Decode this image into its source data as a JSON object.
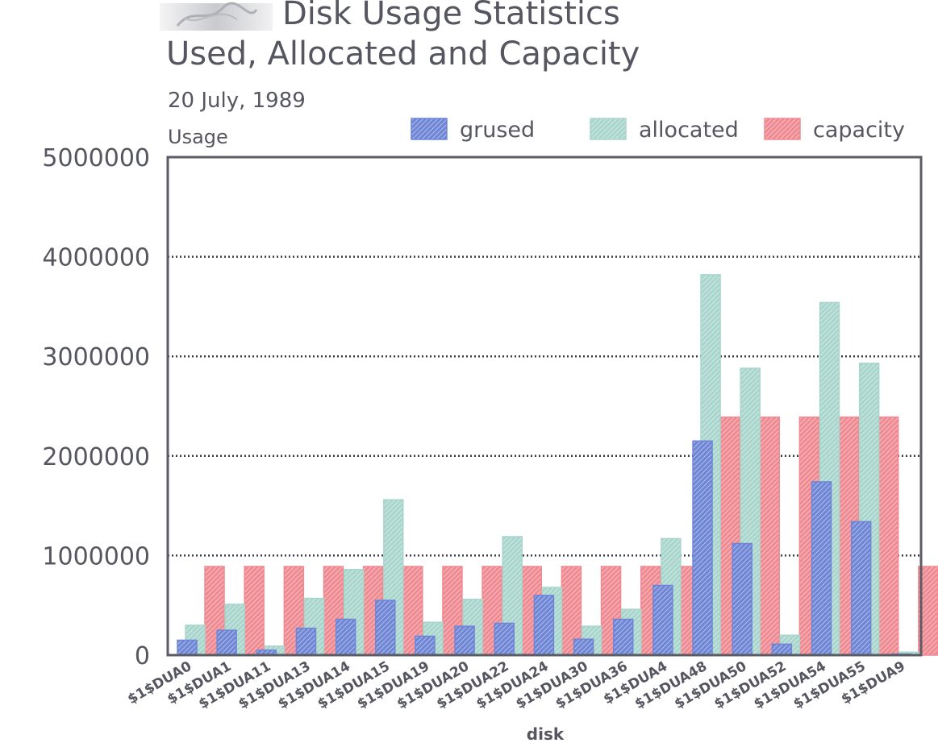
{
  "header": {
    "title": "Disk Usage Statistics",
    "subtitle": "Used, Allocated and Capacity",
    "date": "20 July, 1989"
  },
  "chart_data": {
    "type": "bar",
    "title": "Disk Usage Statistics",
    "subtitle": "Used, Allocated and Capacity",
    "xlabel": "disk",
    "ylabel": "Usage",
    "ylim": [
      0,
      5000000
    ],
    "yticks": [
      0,
      1000000,
      2000000,
      3000000,
      4000000,
      5000000
    ],
    "ytick_labels": [
      "0",
      "1000000",
      "2000000",
      "3000000",
      "4000000",
      "5000000"
    ],
    "grid": true,
    "legend_position": "top",
    "categories": [
      "$1$DUA0",
      "$1$DUA1",
      "$1$DUA11",
      "$1$DUA13",
      "$1$DUA14",
      "$1$DUA15",
      "$1$DUA19",
      "$1$DUA20",
      "$1$DUA22",
      "$1$DUA24",
      "$1$DUA30",
      "$1$DUA36",
      "$1$DUA4",
      "$1$DUA48",
      "$1$DUA50",
      "$1$DUA52",
      "$1$DUA54",
      "$1$DUA55",
      "$1$DUA9"
    ],
    "series": [
      {
        "name": "grused",
        "color": "#6f86d6",
        "values": [
          150000,
          250000,
          50000,
          270000,
          360000,
          550000,
          190000,
          290000,
          320000,
          600000,
          160000,
          360000,
          700000,
          2150000,
          1120000,
          110000,
          1740000,
          1340000,
          10000
        ]
      },
      {
        "name": "allocated",
        "color": "#a9d6cc",
        "values": [
          300000,
          510000,
          90000,
          570000,
          860000,
          1560000,
          330000,
          560000,
          1190000,
          680000,
          290000,
          460000,
          1170000,
          3820000,
          2880000,
          200000,
          3540000,
          2930000,
          30000
        ]
      },
      {
        "name": "capacity",
        "color": "#f08a92",
        "values": [
          890000,
          890000,
          890000,
          890000,
          890000,
          890000,
          890000,
          890000,
          890000,
          890000,
          890000,
          890000,
          890000,
          2390000,
          2390000,
          2390000,
          2390000,
          2390000,
          890000
        ]
      }
    ]
  }
}
